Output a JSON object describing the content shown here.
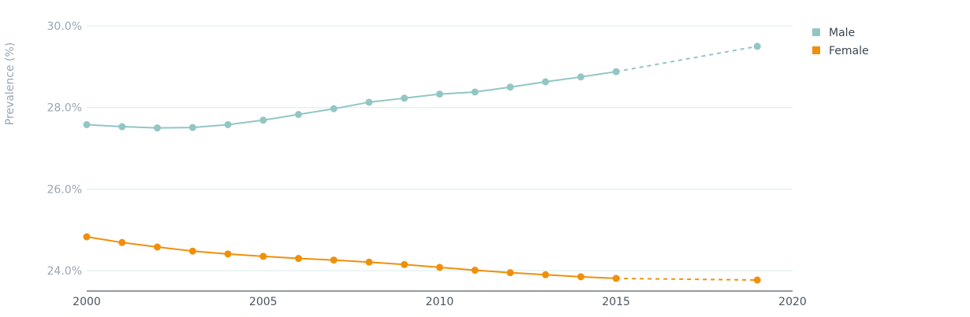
{
  "chart_data": {
    "type": "line",
    "title": "",
    "xlabel": "",
    "ylabel": "Prevalence (%)",
    "xlim": [
      2000,
      2020
    ],
    "ylim": [
      23.5,
      30.0
    ],
    "x_ticks": [
      2000,
      2005,
      2010,
      2015,
      2020
    ],
    "x_tick_labels": [
      "2000",
      "2005",
      "2010",
      "2015",
      "2020"
    ],
    "y_ticks": [
      24,
      26,
      28,
      30
    ],
    "y_tick_labels": [
      "24.0%",
      "26.0%",
      "28.0%",
      "30.0%"
    ],
    "grid": "horizontal",
    "legend_position": "top-right",
    "series": [
      {
        "name": "Male",
        "color": "#92c6c5",
        "x": [
          2000,
          2001,
          2002,
          2003,
          2004,
          2005,
          2006,
          2007,
          2008,
          2009,
          2010,
          2011,
          2012,
          2013,
          2014,
          2015,
          2019
        ],
        "values": [
          27.58,
          27.53,
          27.5,
          27.51,
          27.58,
          27.69,
          27.83,
          27.97,
          28.13,
          28.23,
          28.33,
          28.38,
          28.5,
          28.63,
          28.75,
          28.88,
          29.5
        ],
        "projected_from": 2015
      },
      {
        "name": "Female",
        "color": "#f0900a",
        "x": [
          2000,
          2001,
          2002,
          2003,
          2004,
          2005,
          2006,
          2007,
          2008,
          2009,
          2010,
          2011,
          2012,
          2013,
          2014,
          2015,
          2019
        ],
        "values": [
          24.83,
          24.69,
          24.58,
          24.48,
          24.41,
          24.35,
          24.3,
          24.26,
          24.21,
          24.15,
          24.08,
          24.01,
          23.95,
          23.9,
          23.85,
          23.81,
          23.77
        ],
        "projected_from": 2015
      }
    ]
  }
}
